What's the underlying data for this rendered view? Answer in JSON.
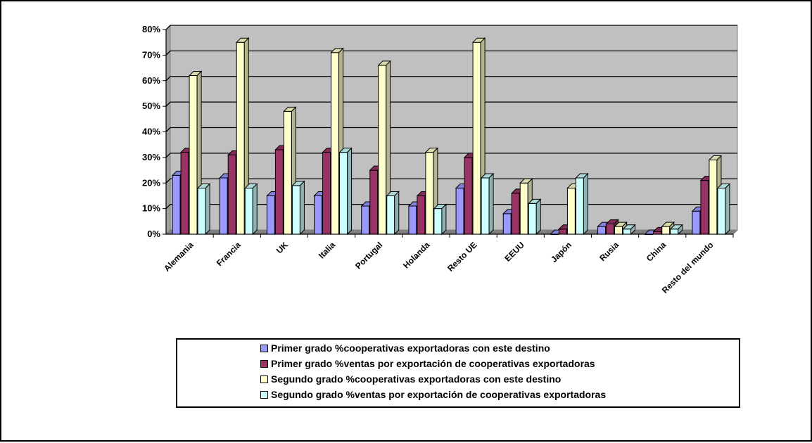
{
  "chart_data": {
    "type": "bar",
    "categories": [
      "Alemania",
      "Francia",
      "UK",
      "Italia",
      "Portugal",
      "Holanda",
      "Resto UE",
      "EEUU",
      "Japón",
      "Rusia",
      "China",
      "Resto del mundo"
    ],
    "series": [
      {
        "name": "Primer grado %cooperativas exportadoras con este destino",
        "color": "#9999ff",
        "values": [
          23,
          22,
          15,
          15,
          11,
          11,
          18,
          8,
          0,
          3,
          0,
          9
        ]
      },
      {
        "name": "Primer grado %ventas por exportación de cooperativas exportadoras",
        "color": "#993366",
        "values": [
          32,
          31,
          33,
          32,
          25,
          15,
          30,
          16,
          2,
          4,
          1,
          21
        ]
      },
      {
        "name": "Segundo grado %cooperativas exportadoras con este destino",
        "color": "#ffffcc",
        "values": [
          62,
          75,
          48,
          71,
          66,
          32,
          75,
          20,
          18,
          3,
          3,
          29
        ]
      },
      {
        "name": "Segundo grado %ventas por exportación de cooperativas exportadoras",
        "color": "#ccffff",
        "values": [
          18,
          18,
          19,
          32,
          15,
          10,
          22,
          12,
          22,
          2,
          2,
          18
        ]
      }
    ],
    "ylim": [
      0,
      80
    ],
    "yticks": [
      0,
      10,
      20,
      30,
      40,
      50,
      60,
      70,
      80
    ],
    "ytick_labels": [
      "0%",
      "10%",
      "20%",
      "30%",
      "40%",
      "50%",
      "60%",
      "70%",
      "80%"
    ],
    "grid": true,
    "legend_position": "bottom",
    "plot_background": "#c0c0c0"
  }
}
